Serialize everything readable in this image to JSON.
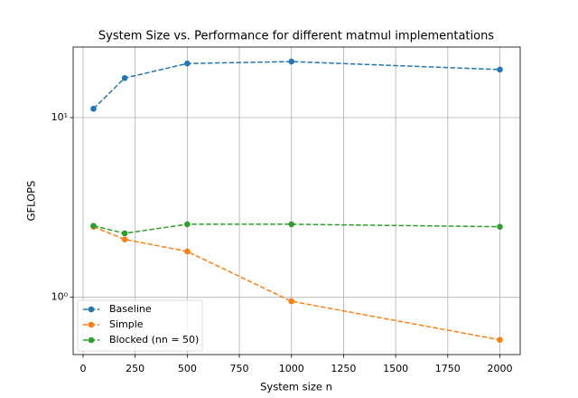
{
  "chart_data": {
    "type": "line",
    "title": "System Size vs. Performance for different matmul implementations",
    "x_label": "System size n",
    "y_label": "GFLOPS",
    "x": [
      50,
      200,
      500,
      1000,
      2000
    ],
    "series": [
      {
        "name": "Baseline",
        "color": "#1f77b4",
        "values": [
          11.2,
          16.6,
          20.0,
          20.5,
          18.5
        ]
      },
      {
        "name": "Simple",
        "color": "#ff7f0e",
        "values": [
          2.47,
          2.1,
          1.8,
          0.95,
          0.58
        ]
      },
      {
        "name": "Blocked (nn = 50)",
        "color": "#2ca02c",
        "values": [
          2.5,
          2.27,
          2.55,
          2.55,
          2.47
        ]
      }
    ],
    "xlim": [
      -47.5,
      2097.5
    ],
    "xticks": [
      0,
      250,
      500,
      750,
      1000,
      1250,
      1500,
      1750,
      2000
    ],
    "ylim": [
      0.48,
      24.7
    ],
    "yticks": [
      {
        "value": 1,
        "label": "10⁰"
      },
      {
        "value": 10,
        "label": "10¹"
      }
    ],
    "y_scale": "log",
    "grid": true,
    "legend_loc": "lower left"
  }
}
